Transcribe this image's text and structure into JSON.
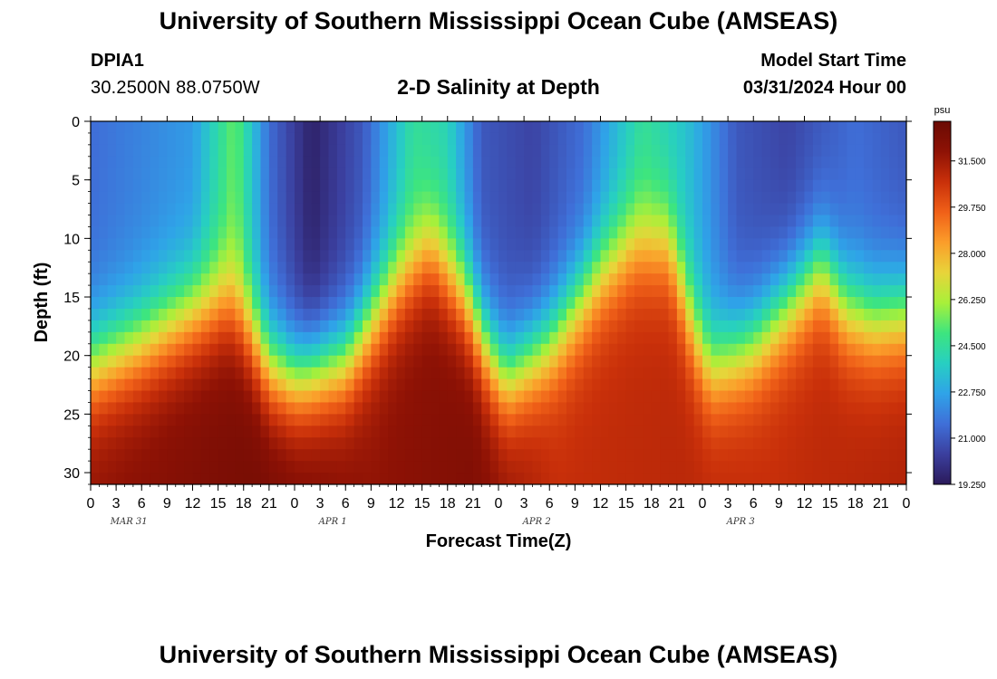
{
  "header": {
    "title": "University of Southern Mississippi Ocean Cube (AMSEAS)",
    "station_id": "DPIA1",
    "station_coords": "30.2500N  88.0750W",
    "plot_title": "2-D Salinity at Depth",
    "model_start_label": "Model Start Time",
    "model_start_value": "03/31/2024 Hour 00"
  },
  "footer": {
    "title": "University of Southern Mississippi Ocean Cube (AMSEAS)"
  },
  "chart_data": {
    "type": "heatmap",
    "title": "2-D Salinity at Depth",
    "xlabel": "Forecast Time(Z)",
    "ylabel": "Depth (ft)",
    "x_range_hours": [
      0,
      96
    ],
    "ylim": [
      0,
      31
    ],
    "y_inverted": true,
    "x_tick_labels": [
      "0",
      "3",
      "6",
      "9",
      "12",
      "15",
      "18",
      "21",
      "0",
      "3",
      "6",
      "9",
      "12",
      "15",
      "18",
      "21",
      "0",
      "3",
      "6",
      "9",
      "12",
      "15",
      "18",
      "21",
      "0",
      "3",
      "6",
      "9",
      "12",
      "15",
      "18",
      "21",
      "0"
    ],
    "y_tick_labels": [
      "0",
      "5",
      "10",
      "15",
      "20",
      "25",
      "30"
    ],
    "y_ticks": [
      0,
      5,
      10,
      15,
      20,
      25,
      30
    ],
    "date_labels": [
      "MAR 31",
      "APR 1",
      "APR 2",
      "APR 3"
    ],
    "colorbar": {
      "unit": "psu",
      "range": [
        19.25,
        33.0
      ],
      "tick_labels": [
        "31.500",
        "29.750",
        "28.000",
        "26.250",
        "24.500",
        "22.750",
        "21.000",
        "19.250"
      ],
      "tick_values": [
        31.5,
        29.75,
        28.0,
        26.25,
        24.5,
        22.75,
        21.0,
        19.25
      ],
      "colors": [
        "#2b1a5a",
        "#3b3f9e",
        "#3f6fd8",
        "#2fa3e8",
        "#27cfc2",
        "#3de57f",
        "#a8f03a",
        "#e8d43a",
        "#fb9d2a",
        "#f06018",
        "#c9300a",
        "#8e1205",
        "#6a0a04"
      ]
    },
    "halocline_depth_ft": [
      {
        "hour": 0,
        "depth": 21
      },
      {
        "hour": 6,
        "depth": 19
      },
      {
        "hour": 12,
        "depth": 16.5
      },
      {
        "hour": 16,
        "depth": 15.5
      },
      {
        "hour": 18,
        "depth": 17
      },
      {
        "hour": 21,
        "depth": 21
      },
      {
        "hour": 24,
        "depth": 22
      },
      {
        "hour": 30,
        "depth": 20.5
      },
      {
        "hour": 36,
        "depth": 14
      },
      {
        "hour": 40,
        "depth": 11
      },
      {
        "hour": 44,
        "depth": 15
      },
      {
        "hour": 47,
        "depth": 20
      },
      {
        "hour": 49,
        "depth": 22
      },
      {
        "hour": 54,
        "depth": 19
      },
      {
        "hour": 60,
        "depth": 13
      },
      {
        "hour": 64,
        "depth": 10.5
      },
      {
        "hour": 68,
        "depth": 10.5
      },
      {
        "hour": 71,
        "depth": 18
      },
      {
        "hour": 73,
        "depth": 21
      },
      {
        "hour": 78,
        "depth": 19
      },
      {
        "hour": 83,
        "depth": 15
      },
      {
        "hour": 86,
        "depth": 12.5
      },
      {
        "hour": 89,
        "depth": 16
      },
      {
        "hour": 92,
        "depth": 17
      },
      {
        "hour": 96,
        "depth": 16.5
      }
    ],
    "surface_salinity_psu": [
      {
        "hour": 0,
        "value": 21.5
      },
      {
        "hour": 12,
        "value": 22.5
      },
      {
        "hour": 17,
        "value": 25.5
      },
      {
        "hour": 21,
        "value": 21.5
      },
      {
        "hour": 26,
        "value": 19.5
      },
      {
        "hour": 32,
        "value": 21.0
      },
      {
        "hour": 38,
        "value": 24.5
      },
      {
        "hour": 42,
        "value": 24.0
      },
      {
        "hour": 46,
        "value": 21.0
      },
      {
        "hour": 52,
        "value": 20.5
      },
      {
        "hour": 58,
        "value": 21.5
      },
      {
        "hour": 65,
        "value": 24.5
      },
      {
        "hour": 70,
        "value": 23.5
      },
      {
        "hour": 76,
        "value": 21.0
      },
      {
        "hour": 82,
        "value": 20.5
      },
      {
        "hour": 90,
        "value": 21.5
      },
      {
        "hour": 96,
        "value": 21.0
      }
    ],
    "bottom_salinity_psu": [
      {
        "hour": 0,
        "value": 31.8
      },
      {
        "hour": 20,
        "value": 32.6
      },
      {
        "hour": 33,
        "value": 31.8
      },
      {
        "hour": 45,
        "value": 32.3
      },
      {
        "hour": 55,
        "value": 30.8
      },
      {
        "hour": 70,
        "value": 31.0
      },
      {
        "hour": 80,
        "value": 30.8
      },
      {
        "hour": 96,
        "value": 31.2
      }
    ]
  }
}
